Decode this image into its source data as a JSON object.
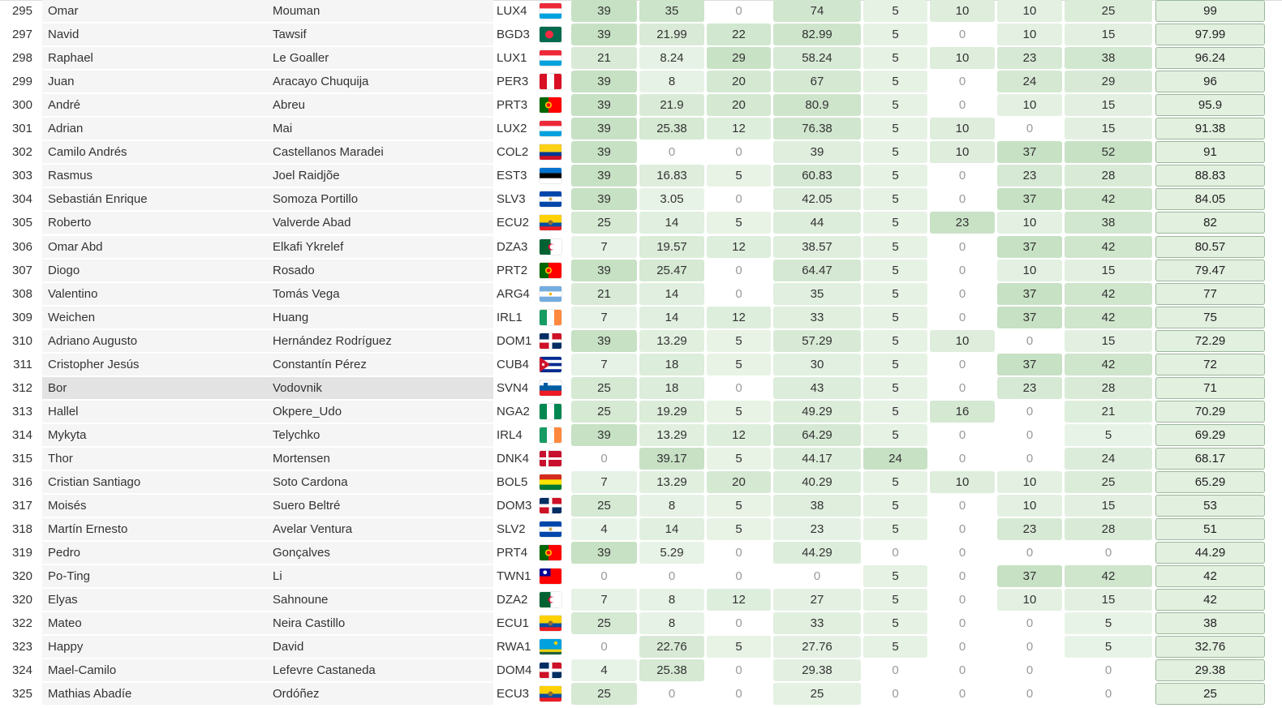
{
  "rows": [
    {
      "rank": "295",
      "first": "Omar",
      "last": "Mouman",
      "team": "LUX4",
      "flag": "lux",
      "s": [
        "39",
        "35",
        "0",
        "74",
        "5",
        "10",
        "10",
        "25"
      ],
      "total": "99"
    },
    {
      "rank": "297",
      "first": "Navid",
      "last": "Tawsif",
      "team": "BGD3",
      "flag": "bgd",
      "s": [
        "39",
        "21.99",
        "22",
        "82.99",
        "5",
        "0",
        "10",
        "15"
      ],
      "total": "97.99"
    },
    {
      "rank": "298",
      "first": "Raphael",
      "last": "Le Goaller",
      "team": "LUX1",
      "flag": "lux",
      "s": [
        "21",
        "8.24",
        "29",
        "58.24",
        "5",
        "10",
        "23",
        "38"
      ],
      "total": "96.24"
    },
    {
      "rank": "299",
      "first": "Juan",
      "last": "Aracayo Chuquija",
      "team": "PER3",
      "flag": "per",
      "s": [
        "39",
        "8",
        "20",
        "67",
        "5",
        "0",
        "24",
        "29"
      ],
      "total": "96"
    },
    {
      "rank": "300",
      "first": "André",
      "last": "Abreu",
      "team": "PRT3",
      "flag": "prt",
      "s": [
        "39",
        "21.9",
        "20",
        "80.9",
        "5",
        "0",
        "10",
        "15"
      ],
      "total": "95.9"
    },
    {
      "rank": "301",
      "first": "Adrian",
      "last": "Mai",
      "team": "LUX2",
      "flag": "lux",
      "s": [
        "39",
        "25.38",
        "12",
        "76.38",
        "5",
        "10",
        "0",
        "15"
      ],
      "total": "91.38"
    },
    {
      "rank": "302",
      "first": "Camilo Andrés",
      "last": "Castellanos Maradei",
      "team": "COL2",
      "flag": "col",
      "s": [
        "39",
        "0",
        "0",
        "39",
        "5",
        "10",
        "37",
        "52"
      ],
      "total": "91"
    },
    {
      "rank": "303",
      "first": "Rasmus",
      "last": "Joel Raidjõe",
      "team": "EST3",
      "flag": "est",
      "s": [
        "39",
        "16.83",
        "5",
        "60.83",
        "5",
        "0",
        "23",
        "28"
      ],
      "total": "88.83"
    },
    {
      "rank": "304",
      "first": "Sebastián Enrique",
      "last": "Somoza Portillo",
      "team": "SLV3",
      "flag": "slv",
      "s": [
        "39",
        "3.05",
        "0",
        "42.05",
        "5",
        "0",
        "37",
        "42"
      ],
      "total": "84.05"
    },
    {
      "rank": "305",
      "first": "Roberto",
      "last": "Valverde Abad",
      "team": "ECU2",
      "flag": "ecu",
      "s": [
        "25",
        "14",
        "5",
        "44",
        "5",
        "23",
        "10",
        "38"
      ],
      "total": "82"
    },
    {
      "rank": "306",
      "first": "Omar Abd",
      "last": "Elkafi Ykrelef",
      "team": "DZA3",
      "flag": "dza",
      "s": [
        "7",
        "19.57",
        "12",
        "38.57",
        "5",
        "0",
        "37",
        "42"
      ],
      "total": "80.57"
    },
    {
      "rank": "307",
      "first": "Diogo",
      "last": "Rosado",
      "team": "PRT2",
      "flag": "prt",
      "s": [
        "39",
        "25.47",
        "0",
        "64.47",
        "5",
        "0",
        "10",
        "15"
      ],
      "total": "79.47"
    },
    {
      "rank": "308",
      "first": "Valentino",
      "last": "Tomás Vega",
      "team": "ARG4",
      "flag": "arg",
      "s": [
        "21",
        "14",
        "0",
        "35",
        "5",
        "0",
        "37",
        "42"
      ],
      "total": "77"
    },
    {
      "rank": "309",
      "first": "Weichen",
      "last": "Huang",
      "team": "IRL1",
      "flag": "irl",
      "s": [
        "7",
        "14",
        "12",
        "33",
        "5",
        "0",
        "37",
        "42"
      ],
      "total": "75"
    },
    {
      "rank": "310",
      "first": "Adriano Augusto",
      "last": "Hernández Rodríguez",
      "team": "DOM1",
      "flag": "dom",
      "s": [
        "39",
        "13.29",
        "5",
        "57.29",
        "5",
        "10",
        "0",
        "15"
      ],
      "total": "72.29"
    },
    {
      "rank": "311",
      "first": "Cristopher Jesús",
      "last": "Constantín Pérez",
      "team": "CUB4",
      "flag": "cub",
      "s": [
        "7",
        "18",
        "5",
        "30",
        "5",
        "0",
        "37",
        "42"
      ],
      "total": "72"
    },
    {
      "rank": "312",
      "first": "Bor",
      "last": "Vodovnik",
      "team": "SVN4",
      "flag": "svn",
      "s": [
        "25",
        "18",
        "0",
        "43",
        "5",
        "0",
        "23",
        "28"
      ],
      "total": "71",
      "highlight": true
    },
    {
      "rank": "313",
      "first": "Hallel",
      "last": "Okpere_Udo",
      "team": "NGA2",
      "flag": "nga",
      "s": [
        "25",
        "19.29",
        "5",
        "49.29",
        "5",
        "16",
        "0",
        "21"
      ],
      "total": "70.29"
    },
    {
      "rank": "314",
      "first": "Mykyta",
      "last": "Telychko",
      "team": "IRL4",
      "flag": "irl",
      "s": [
        "39",
        "13.29",
        "12",
        "64.29",
        "5",
        "0",
        "0",
        "5"
      ],
      "total": "69.29"
    },
    {
      "rank": "315",
      "first": "Thor",
      "last": "Mortensen",
      "team": "DNK4",
      "flag": "dnk",
      "s": [
        "0",
        "39.17",
        "5",
        "44.17",
        "24",
        "0",
        "0",
        "24"
      ],
      "total": "68.17"
    },
    {
      "rank": "316",
      "first": "Cristian Santiago",
      "last": "Soto Cardona",
      "team": "BOL5",
      "flag": "bol",
      "s": [
        "7",
        "13.29",
        "20",
        "40.29",
        "5",
        "10",
        "10",
        "25"
      ],
      "total": "65.29"
    },
    {
      "rank": "317",
      "first": "Moisés",
      "last": "Suero Beltré",
      "team": "DOM3",
      "flag": "dom",
      "s": [
        "25",
        "8",
        "5",
        "38",
        "5",
        "0",
        "10",
        "15"
      ],
      "total": "53"
    },
    {
      "rank": "318",
      "first": "Martín Ernesto",
      "last": "Avelar Ventura",
      "team": "SLV2",
      "flag": "slv",
      "s": [
        "4",
        "14",
        "5",
        "23",
        "5",
        "0",
        "23",
        "28"
      ],
      "total": "51"
    },
    {
      "rank": "319",
      "first": "Pedro",
      "last": "Gonçalves",
      "team": "PRT4",
      "flag": "prt",
      "s": [
        "39",
        "5.29",
        "0",
        "44.29",
        "0",
        "0",
        "0",
        "0"
      ],
      "total": "44.29"
    },
    {
      "rank": "320",
      "first": "Po-Ting",
      "last": "Li",
      "team": "TWN1",
      "flag": "twn",
      "s": [
        "0",
        "0",
        "0",
        "0",
        "5",
        "0",
        "37",
        "42"
      ],
      "total": "42"
    },
    {
      "rank": "320",
      "first": "Elyas",
      "last": "Sahnoune",
      "team": "DZA2",
      "flag": "dza",
      "s": [
        "7",
        "8",
        "12",
        "27",
        "5",
        "0",
        "10",
        "15"
      ],
      "total": "42"
    },
    {
      "rank": "322",
      "first": "Mateo",
      "last": "Neira Castillo",
      "team": "ECU1",
      "flag": "ecu",
      "s": [
        "25",
        "8",
        "0",
        "33",
        "5",
        "0",
        "0",
        "5"
      ],
      "total": "38"
    },
    {
      "rank": "323",
      "first": "Happy",
      "last": "David",
      "team": "RWA1",
      "flag": "rwa",
      "s": [
        "0",
        "22.76",
        "5",
        "27.76",
        "5",
        "0",
        "0",
        "5"
      ],
      "total": "32.76"
    },
    {
      "rank": "324",
      "first": "Mael-Camilo",
      "last": "Lefevre Castaneda",
      "team": "DOM4",
      "flag": "dom",
      "s": [
        "4",
        "25.38",
        "0",
        "29.38",
        "0",
        "0",
        "0",
        "0"
      ],
      "total": "29.38"
    },
    {
      "rank": "325",
      "first": "Mathias Abadíe",
      "last": "Ordóñez",
      "team": "ECU3",
      "flag": "ecu",
      "s": [
        "25",
        "0",
        "0",
        "25",
        "0",
        "0",
        "0",
        "0"
      ],
      "total": "25"
    }
  ],
  "score_max": [
    39,
    40,
    30,
    100,
    24,
    24,
    37,
    52
  ],
  "colors": {
    "cell_green_light": "#eef6ed",
    "cell_green_dark": "#c7e1c4",
    "highlight_row": "#e3e3e3",
    "total_fill": "#e2f0df",
    "total_border": "#9cb89c"
  },
  "flag_icons": {
    "lux": "luxembourg-flag-icon",
    "bgd": "bangladesh-flag-icon",
    "per": "peru-flag-icon",
    "prt": "portugal-flag-icon",
    "col": "colombia-flag-icon",
    "est": "estonia-flag-icon",
    "slv": "el-salvador-flag-icon",
    "ecu": "ecuador-flag-icon",
    "dza": "algeria-flag-icon",
    "arg": "argentina-flag-icon",
    "irl": "ireland-flag-icon",
    "dom": "dominican-republic-flag-icon",
    "cub": "cuba-flag-icon",
    "svn": "slovenia-flag-icon",
    "nga": "nigeria-flag-icon",
    "dnk": "denmark-flag-icon",
    "bol": "bolivia-flag-icon",
    "twn": "taiwan-flag-icon",
    "rwa": "rwanda-flag-icon"
  }
}
